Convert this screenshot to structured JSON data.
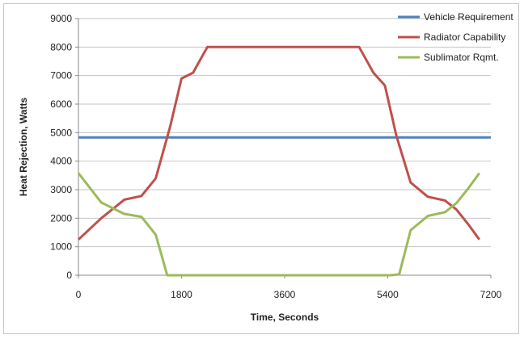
{
  "chart_data": {
    "type": "line",
    "xlabel": "Time, Seconds",
    "ylabel": "Heat Rejection, Watts",
    "xlim": [
      0,
      7200
    ],
    "ylim": [
      0,
      9000
    ],
    "x_ticks": [
      0,
      1800,
      3600,
      5400,
      7200
    ],
    "y_ticks": [
      0,
      1000,
      2000,
      3000,
      4000,
      5000,
      6000,
      7000,
      8000,
      9000
    ],
    "grid": "horizontal",
    "legend_position": "top-right",
    "series": [
      {
        "name": "Vehicle Requirement",
        "color": "#4f81bd",
        "points": [
          [
            0,
            4830
          ],
          [
            7200,
            4830
          ]
        ]
      },
      {
        "name": "Radiator Capability",
        "color": "#c0504d",
        "points": [
          [
            0,
            1250
          ],
          [
            400,
            2000
          ],
          [
            800,
            2650
          ],
          [
            1100,
            2780
          ],
          [
            1350,
            3400
          ],
          [
            1600,
            5200
          ],
          [
            1800,
            6900
          ],
          [
            2000,
            7100
          ],
          [
            2250,
            8000
          ],
          [
            4900,
            8000
          ],
          [
            5150,
            7100
          ],
          [
            5350,
            6650
          ],
          [
            5550,
            4900
          ],
          [
            5800,
            3250
          ],
          [
            6100,
            2750
          ],
          [
            6400,
            2620
          ],
          [
            6600,
            2300
          ],
          [
            6800,
            1800
          ],
          [
            7000,
            1250
          ]
        ]
      },
      {
        "name": "Sublimator Rqmt.",
        "color": "#9bbb59",
        "points": [
          [
            0,
            3580
          ],
          [
            400,
            2550
          ],
          [
            800,
            2150
          ],
          [
            1100,
            2050
          ],
          [
            1350,
            1420
          ],
          [
            1550,
            0
          ],
          [
            5450,
            0
          ],
          [
            5600,
            30
          ],
          [
            5800,
            1580
          ],
          [
            6100,
            2080
          ],
          [
            6400,
            2210
          ],
          [
            6600,
            2530
          ],
          [
            6800,
            3030
          ],
          [
            7000,
            3580
          ]
        ]
      }
    ]
  }
}
